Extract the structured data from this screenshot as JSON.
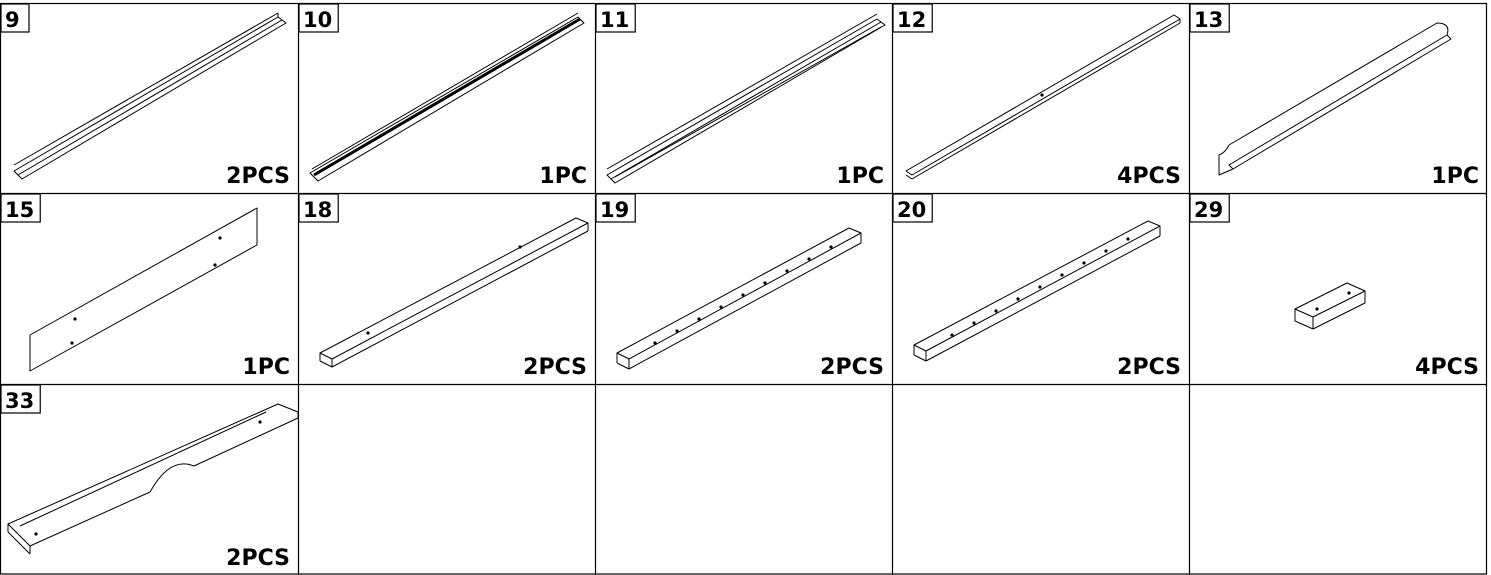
{
  "parts": [
    {
      "number": "9",
      "quantity": "2PCS"
    },
    {
      "number": "10",
      "quantity": "1PC"
    },
    {
      "number": "11",
      "quantity": "1PC"
    },
    {
      "number": "12",
      "quantity": "4PCS"
    },
    {
      "number": "13",
      "quantity": "1PC"
    },
    {
      "number": "15",
      "quantity": "1PC"
    },
    {
      "number": "18",
      "quantity": "2PCS"
    },
    {
      "number": "19",
      "quantity": "2PCS"
    },
    {
      "number": "20",
      "quantity": "2PCS"
    },
    {
      "number": "29",
      "quantity": "4PCS"
    },
    {
      "number": "33",
      "quantity": "2PCS"
    }
  ]
}
